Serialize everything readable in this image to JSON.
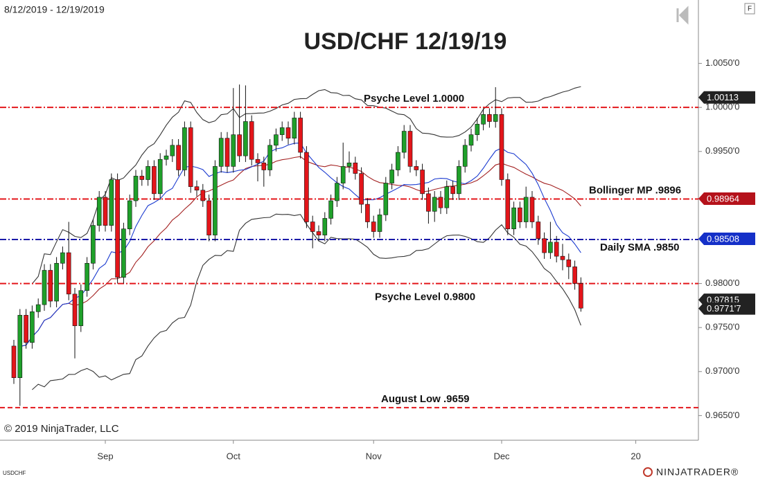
{
  "chart_data": {
    "type": "candlestick",
    "title": "USD/CHF 12/19/19",
    "date_range": "8/12/2019 - 12/19/2019",
    "copyright": "© 2019 NinjaTrader, LLC",
    "instrument": "USDCHF",
    "logo": "NINJATRADER®",
    "panel_button": "F",
    "up_color": "#1fa02a",
    "down_color": "#e3151a",
    "categories": [
      null,
      null,
      null,
      null,
      null,
      null,
      null,
      null,
      null,
      null,
      null,
      null,
      null,
      null,
      null,
      "Sep",
      null,
      null,
      null,
      null,
      null,
      null,
      null,
      null,
      null,
      null,
      null,
      null,
      null,
      null,
      null,
      null,
      null,
      null,
      null,
      null,
      "Oct",
      null,
      null,
      null,
      null,
      null,
      null,
      null,
      null,
      null,
      null,
      null,
      null,
      null,
      null,
      null,
      null,
      null,
      null,
      null,
      null,
      null,
      null,
      "Nov",
      null,
      null,
      null,
      null,
      null,
      null,
      null,
      null,
      null,
      null,
      null,
      null,
      null,
      null,
      null,
      null,
      null,
      null,
      null,
      null,
      "Dec",
      null,
      null,
      null,
      null,
      null,
      null,
      null,
      null,
      null,
      null,
      null,
      null,
      null,
      null,
      null,
      null,
      null,
      null,
      null,
      null,
      null,
      "20"
    ],
    "open": [
      0.9729,
      0.9693,
      0.9764,
      0.9733,
      0.9768,
      0.9776,
      0.9815,
      0.978,
      0.9823,
      0.9835,
      0.9788,
      0.9752,
      0.9792,
      0.9823,
      0.9866,
      0.9898,
      0.9866,
      0.9918,
      0.9807,
      0.9862,
      0.9894,
      0.9922,
      0.9918,
      0.9933,
      0.9902,
      0.9941,
      0.9945,
      0.9957,
      0.9929,
      0.9977,
      0.991,
      0.9906,
      0.9894,
      0.9855,
      0.9933,
      0.9965,
      0.9933,
      0.9969,
      0.9945,
      0.9984,
      0.9941,
      0.9937,
      0.9929,
      0.9957,
      0.9969,
      0.9977,
      0.9965,
      0.9988,
      0.9949,
      0.987,
      0.9859,
      0.9855,
      0.9874,
      0.9894,
      0.9914,
      0.9933,
      0.9937,
      0.9925,
      0.989,
      0.987,
      0.9859,
      0.9878,
      0.9914,
      0.9929,
      0.9949,
      0.9973,
      0.9933,
      0.9929,
      0.9902,
      0.9882,
      0.9898,
      0.9886,
      0.991,
      0.9902,
      0.9933,
      0.9957,
      0.9969,
      0.9981,
      0.9992,
      0.9984,
      0.9992,
      0.9918,
      0.9862,
      0.9886,
      0.987,
      0.9898,
      0.987,
      0.9851,
      0.9835,
      0.9847,
      0.9831,
      0.9827,
      0.9819,
      0.98,
      null,
      null,
      null,
      null,
      null,
      null,
      null,
      null,
      null
    ],
    "high": [
      0.9736,
      0.9771,
      0.9771,
      0.9775,
      0.9783,
      0.9822,
      0.9822,
      0.983,
      0.9842,
      0.987,
      0.9795,
      0.9799,
      0.983,
      0.9873,
      0.9905,
      0.9905,
      0.9925,
      0.9925,
      0.9869,
      0.9901,
      0.9929,
      0.9929,
      0.994,
      0.994,
      0.9948,
      0.9952,
      0.9964,
      0.9964,
      0.9984,
      0.9984,
      0.9917,
      0.9913,
      0.9901,
      0.994,
      0.9972,
      0.9972,
      1.0022,
      1.0026,
      1.0025,
      0.9991,
      0.9948,
      0.9944,
      0.9964,
      0.9976,
      0.9984,
      0.9984,
      0.9995,
      0.9995,
      0.9956,
      0.9877,
      0.9866,
      0.9881,
      0.9901,
      0.9921,
      0.996,
      0.995,
      0.9944,
      0.9932,
      0.9897,
      0.9877,
      0.9885,
      0.9921,
      0.9936,
      0.9956,
      0.998,
      0.998,
      0.994,
      0.9936,
      0.9909,
      0.9905,
      0.9905,
      0.9917,
      0.9917,
      0.994,
      0.9964,
      0.9976,
      0.9988,
      0.9999,
      0.9999,
      1.0023,
      0.9999,
      0.9925,
      0.9893,
      0.9893,
      0.991,
      0.9905,
      0.9877,
      0.9858,
      0.987,
      0.9854,
      0.9845,
      0.9834,
      0.9826,
      0.9807,
      null,
      null,
      null,
      null,
      null,
      null,
      null,
      null,
      null
    ],
    "low": [
      0.9686,
      0.9661,
      0.9726,
      0.9726,
      0.9761,
      0.9769,
      0.9773,
      0.9773,
      0.9816,
      0.9781,
      0.9715,
      0.9745,
      0.9785,
      0.9816,
      0.9859,
      0.9859,
      0.9859,
      0.98,
      0.98,
      0.9855,
      0.9887,
      0.9911,
      0.9911,
      0.9895,
      0.9895,
      0.9934,
      0.9938,
      0.9922,
      0.9922,
      0.9903,
      0.9899,
      0.9887,
      0.9848,
      0.9848,
      0.9926,
      0.9926,
      0.9926,
      0.9938,
      0.9938,
      0.9934,
      0.9916,
      0.991,
      0.9922,
      0.995,
      0.9962,
      0.9958,
      0.9958,
      0.9942,
      0.9863,
      0.984,
      0.9848,
      0.9848,
      0.9867,
      0.9887,
      0.9907,
      0.9926,
      0.9918,
      0.988,
      0.9863,
      0.9852,
      0.9852,
      0.9871,
      0.9907,
      0.9922,
      0.9942,
      0.9926,
      0.9922,
      0.9895,
      0.9868,
      0.987,
      0.9879,
      0.9879,
      0.9895,
      0.9895,
      0.9926,
      0.995,
      0.9962,
      0.9974,
      0.9977,
      0.9977,
      0.9911,
      0.9855,
      0.9855,
      0.9863,
      0.9863,
      0.9863,
      0.9844,
      0.9828,
      0.9828,
      0.9824,
      0.9815,
      0.9805,
      0.9793,
      0.9768,
      null,
      null,
      null,
      null,
      null,
      null,
      null,
      null,
      null
    ],
    "close": [
      0.9693,
      0.9764,
      0.9733,
      0.9768,
      0.9776,
      0.9815,
      0.978,
      0.9823,
      0.9835,
      0.9788,
      0.9752,
      0.9792,
      0.9823,
      0.9866,
      0.9898,
      0.9866,
      0.9918,
      0.9807,
      0.9862,
      0.9894,
      0.9922,
      0.9918,
      0.9933,
      0.9902,
      0.9941,
      0.9945,
      0.9957,
      0.9929,
      0.9977,
      0.991,
      0.9906,
      0.9894,
      0.9855,
      0.9933,
      0.9965,
      0.9933,
      0.9969,
      0.9945,
      0.9984,
      0.9941,
      0.9937,
      0.9929,
      0.9957,
      0.9969,
      0.9977,
      0.9965,
      0.9988,
      0.9949,
      0.987,
      0.9859,
      0.9855,
      0.9874,
      0.9894,
      0.9914,
      0.9933,
      0.9937,
      0.9925,
      0.989,
      0.987,
      0.9859,
      0.9878,
      0.9914,
      0.9929,
      0.9949,
      0.9973,
      0.9933,
      0.9929,
      0.9902,
      0.9882,
      0.9898,
      0.9886,
      0.991,
      0.9902,
      0.9933,
      0.9957,
      0.9969,
      0.9981,
      0.9992,
      0.9984,
      0.9992,
      0.9918,
      0.9862,
      0.9886,
      0.987,
      0.9898,
      0.987,
      0.9851,
      0.9835,
      0.9847,
      0.9831,
      0.9827,
      0.9819,
      0.98,
      0.9772,
      null,
      null,
      null,
      null,
      null,
      null,
      null,
      null,
      null
    ],
    "ylim": [
      0.9622,
      1.0122
    ],
    "yticks": [
      {
        "value": 0.965,
        "label": "0.9650'0"
      },
      {
        "value": 0.97,
        "label": "0.9700'0"
      },
      {
        "value": 0.975,
        "label": "0.9750'0"
      },
      {
        "value": 0.98,
        "label": "0.9800'0"
      },
      {
        "value": 0.995,
        "label": "0.9950'0"
      },
      {
        "value": 1.0,
        "label": "1.0000'0"
      },
      {
        "value": 1.005,
        "label": "1.0050'0"
      }
    ],
    "grid": false,
    "levels": [
      {
        "label": "Psyche Level 1.0000",
        "value": 1.0,
        "color": "#e3151a"
      },
      {
        "label": "Bollinger MP .9896",
        "value": 0.9896,
        "color": "#e3151a"
      },
      {
        "label": "Daily SMA .9850",
        "value": 0.985,
        "color": "#1a1aa8"
      },
      {
        "label": "Psyche Level 0.9800",
        "value": 0.98,
        "color": "#e3151a"
      },
      {
        "label": "August Low .9659",
        "value": 0.9659,
        "color": "#e3151a"
      }
    ],
    "price_markers": [
      {
        "value": 1.00113,
        "label": "1.00113",
        "color": "#222222"
      },
      {
        "value": 0.98964,
        "label": "0.98964",
        "color": "#b5121b"
      },
      {
        "value": 0.98508,
        "label": "0.98508",
        "color": "#1530c8"
      },
      {
        "value": 0.97815,
        "label": "0.97815",
        "color": "#222222"
      },
      {
        "value": 0.97717,
        "label": "0.9771'7",
        "color": "#222222"
      }
    ]
  }
}
